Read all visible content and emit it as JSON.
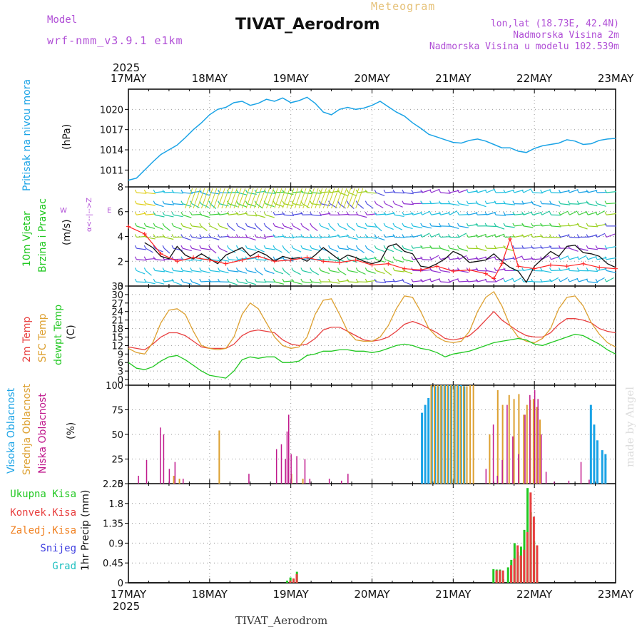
{
  "header": {
    "model_label": "Model",
    "model_name": "wrf-nmm_v3.9.1 e1km",
    "title": "TIVAT_Aerodrom",
    "subtitle": "Meteogram",
    "lonlat": "lon,lat (18.73E, 42.4N)",
    "elevation": "Nadmorska Visina 2m",
    "model_elevation": "Nadmorska Visina u modelu 102.539m"
  },
  "footer": {
    "station": "TIVAT_Aerodrom",
    "made_by": "made by Angel"
  },
  "time_axis": {
    "year": "2025",
    "labels": [
      "17MAY",
      "18MAY",
      "19MAY",
      "20MAY",
      "21MAY",
      "22MAY",
      "23MAY"
    ]
  },
  "colors": {
    "pressure": "#1aa3e6",
    "wind_speed": "#111111",
    "gust": "#ff2020",
    "t2m": "#e84040",
    "sfc": "#dda030",
    "dewpt": "#22c822",
    "high_cloud": "#1aa3e6",
    "mid_cloud": "#dda030",
    "low_cloud": "#c0188c",
    "total_precip": "#22c822",
    "conv_precip": "#e84040",
    "frozen": "#f08020",
    "snow": "#4040e0",
    "hail": "#20c0c0"
  },
  "panels": {
    "pressure": {
      "label": "Pritisak na nivou mora",
      "unit": "(hPa)"
    },
    "wind": {
      "label1": "10m Vjetar",
      "label2": "Brzina i Pravac",
      "unit": "(m/s)",
      "compass_ns": "α<--|-->Z",
      "compass_w": "W",
      "compass_e": "E"
    },
    "temp": {
      "label1": "2m Temp",
      "label2": "SFC Temp",
      "label3": "dewpt Temp",
      "unit": "(C)"
    },
    "cloud": {
      "label1": "Visoka Oblacnost",
      "label2": "Srednja Oblacnost",
      "label3": "Niska Oblacnost",
      "unit": "(%)"
    },
    "precip": {
      "label1": "Ukupna Kisa",
      "label2": "Konvek.Kisa",
      "label3": "Zaledj.Kisa",
      "label4": "Snijeg",
      "label5": "Grad",
      "unit": "1hr Precip (mm)"
    }
  },
  "chart_data": [
    {
      "type": "line",
      "panel": "pressure",
      "x_unit": "days since 17MAY 00UTC",
      "ylim": [
        1008.5,
        1023
      ],
      "yticks": [
        1011,
        1014,
        1017,
        1020
      ],
      "grid": true,
      "x": [
        0.0,
        0.1,
        0.2,
        0.3,
        0.4,
        0.5,
        0.6,
        0.7,
        0.8,
        0.9,
        1.0,
        1.1,
        1.2,
        1.3,
        1.4,
        1.5,
        1.6,
        1.7,
        1.8,
        1.9,
        2.0,
        2.1,
        2.2,
        2.3,
        2.4,
        2.5,
        2.6,
        2.7,
        2.8,
        2.9,
        3.0,
        3.1,
        3.2,
        3.3,
        3.4,
        3.5,
        3.6,
        3.7,
        3.8,
        3.9,
        4.0,
        4.1,
        4.2,
        4.3,
        4.4,
        4.5,
        4.6,
        4.7,
        4.8,
        4.9,
        5.0,
        5.1,
        5.2,
        5.3,
        5.4,
        5.5,
        5.6,
        5.7,
        5.8,
        5.9,
        6.0
      ],
      "values": [
        1009.5,
        1009.8,
        1011.0,
        1012.2,
        1013.3,
        1014.0,
        1014.7,
        1015.8,
        1017.0,
        1018.0,
        1019.2,
        1020.0,
        1020.3,
        1021.0,
        1021.2,
        1020.6,
        1020.9,
        1021.5,
        1021.2,
        1021.7,
        1021.0,
        1021.3,
        1021.8,
        1020.9,
        1019.6,
        1019.2,
        1020.0,
        1020.3,
        1020.0,
        1020.2,
        1020.6,
        1021.2,
        1020.4,
        1019.6,
        1019.0,
        1018.0,
        1017.2,
        1016.3,
        1015.9,
        1015.5,
        1015.1,
        1015.0,
        1015.4,
        1015.6,
        1015.3,
        1014.8,
        1014.3,
        1014.3,
        1013.8,
        1013.6,
        1014.2,
        1014.6,
        1014.8,
        1015.0,
        1015.5,
        1015.3,
        1014.8,
        1014.9,
        1015.4,
        1015.6,
        1015.7
      ],
      "series": [
        {
          "name": "Pritisak na nivou mora"
        }
      ]
    },
    {
      "type": "line",
      "panel": "wind",
      "x_unit": "days since 17MAY 00UTC",
      "ylim": [
        0,
        8
      ],
      "yticks": [
        0,
        2,
        4,
        6,
        8
      ],
      "grid": true,
      "series": [
        {
          "name": "Brzina (wind speed)",
          "x": [
            0.2,
            0.3,
            0.4,
            0.5,
            0.6,
            0.7,
            0.8,
            0.9,
            1.0,
            1.1,
            1.2,
            1.3,
            1.4,
            1.5,
            1.6,
            1.7,
            1.8,
            1.9,
            2.0,
            2.1,
            2.2,
            2.3,
            2.4,
            2.5,
            2.6,
            2.7,
            2.8,
            2.9,
            3.0,
            3.1,
            3.2,
            3.3,
            3.4,
            3.5,
            3.6,
            3.7,
            3.8,
            3.9,
            4.0,
            4.1,
            4.2,
            4.3,
            4.4,
            4.5,
            4.6,
            4.7,
            4.8,
            4.9,
            5.0,
            5.1,
            5.2,
            5.3,
            5.4,
            5.5,
            5.6,
            5.7,
            5.8,
            5.9,
            6.0
          ],
          "values": [
            3.5,
            3.1,
            2.4,
            2.2,
            3.2,
            2.5,
            2.2,
            2.6,
            2.2,
            1.8,
            2.5,
            2.8,
            3.1,
            2.4,
            2.8,
            2.5,
            2.0,
            2.4,
            2.2,
            2.3,
            2.0,
            2.5,
            3.1,
            2.6,
            2.1,
            2.5,
            2.3,
            2.0,
            1.8,
            2.0,
            3.2,
            3.4,
            2.8,
            2.6,
            1.6,
            1.5,
            1.8,
            2.2,
            2.8,
            2.5,
            1.9,
            2.0,
            2.1,
            2.6,
            2.0,
            1.5,
            1.2,
            0.3,
            1.6,
            2.2,
            2.8,
            2.4,
            3.2,
            3.3,
            2.7,
            2.6,
            2.4,
            1.8,
            1.5
          ]
        },
        {
          "name": "Udar (gust)",
          "x": [
            0.0,
            0.2,
            0.4,
            0.6,
            0.8,
            1.0,
            1.2,
            1.4,
            1.6,
            1.8,
            2.0,
            2.2,
            2.4,
            2.6,
            2.8,
            3.0,
            3.2,
            3.4,
            3.6,
            3.8,
            4.0,
            4.2,
            4.4,
            4.5,
            4.6,
            4.7,
            4.8,
            5.0,
            5.2,
            5.4,
            5.6,
            5.8,
            6.0
          ],
          "values": [
            4.8,
            4.2,
            2.6,
            2.0,
            2.3,
            2.1,
            1.8,
            2.1,
            2.4,
            2.0,
            2.1,
            2.3,
            2.0,
            1.9,
            2.1,
            1.7,
            1.8,
            1.4,
            1.3,
            1.6,
            1.2,
            1.3,
            1.0,
            0.6,
            1.8,
            3.8,
            1.6,
            1.4,
            1.7,
            1.6,
            1.8,
            1.5,
            1.4
          ]
        }
      ]
    },
    {
      "type": "line",
      "panel": "temp",
      "x_unit": "days since 17MAY 00UTC",
      "ylim": [
        -2,
        33
      ],
      "yticks": [
        0,
        3,
        6,
        9,
        12,
        15,
        18,
        21,
        24,
        27,
        30,
        33
      ],
      "grid": true,
      "x": [
        0.0,
        0.1,
        0.2,
        0.3,
        0.4,
        0.5,
        0.6,
        0.7,
        0.8,
        0.9,
        1.0,
        1.1,
        1.2,
        1.3,
        1.4,
        1.5,
        1.6,
        1.7,
        1.8,
        1.9,
        2.0,
        2.1,
        2.2,
        2.3,
        2.4,
        2.5,
        2.6,
        2.7,
        2.8,
        2.9,
        3.0,
        3.1,
        3.2,
        3.3,
        3.4,
        3.5,
        3.6,
        3.7,
        3.8,
        3.9,
        4.0,
        4.1,
        4.2,
        4.3,
        4.4,
        4.5,
        4.6,
        4.7,
        4.8,
        4.9,
        5.0,
        5.1,
        5.2,
        5.3,
        5.4,
        5.5,
        5.6,
        5.7,
        5.8,
        5.9,
        6.0
      ],
      "series": [
        {
          "name": "2m Temp",
          "values": [
            11.5,
            11.0,
            10.5,
            12.5,
            15.0,
            16.5,
            16.5,
            15.5,
            13.5,
            11.5,
            11.0,
            11.0,
            11.0,
            12.5,
            15.5,
            17.0,
            17.5,
            17.0,
            16.5,
            14.0,
            12.5,
            12.0,
            12.5,
            14.5,
            17.5,
            18.5,
            18.5,
            17.0,
            15.5,
            14.0,
            13.5,
            14.0,
            15.0,
            17.0,
            19.5,
            20.5,
            19.5,
            18.0,
            16.5,
            14.5,
            14.0,
            14.5,
            15.5,
            18.0,
            21.0,
            24.0,
            21.0,
            19.0,
            17.0,
            15.5,
            15.0,
            15.0,
            16.5,
            19.5,
            21.5,
            21.5,
            21.0,
            20.0,
            18.0,
            17.0,
            16.5
          ]
        },
        {
          "name": "SFC Temp",
          "values": [
            11.0,
            9.5,
            9.0,
            13.0,
            20.0,
            24.5,
            25.0,
            23.0,
            17.0,
            12.0,
            11.0,
            10.5,
            11.0,
            15.0,
            23.0,
            27.0,
            25.0,
            20.0,
            15.0,
            12.0,
            11.0,
            11.5,
            15.0,
            23.0,
            28.0,
            28.5,
            23.0,
            17.0,
            14.0,
            13.5,
            13.5,
            15.0,
            19.0,
            25.0,
            29.5,
            29.0,
            24.0,
            18.0,
            15.0,
            13.5,
            13.0,
            13.5,
            17.0,
            24.0,
            29.0,
            31.0,
            26.0,
            19.0,
            15.0,
            13.5,
            13.0,
            14.5,
            18.0,
            25.0,
            29.0,
            29.5,
            26.0,
            20.0,
            16.0,
            13.0,
            11.5
          ]
        },
        {
          "name": "dewpt Temp",
          "values": [
            6.0,
            4.0,
            3.5,
            4.5,
            6.5,
            8.0,
            8.5,
            7.0,
            5.0,
            3.0,
            1.5,
            1.0,
            0.5,
            3.0,
            7.0,
            8.0,
            7.5,
            8.0,
            8.0,
            6.0,
            6.0,
            6.5,
            8.5,
            9.0,
            10.0,
            10.0,
            10.5,
            10.5,
            10.0,
            10.0,
            9.5,
            10.0,
            11.0,
            12.0,
            12.5,
            12.0,
            11.0,
            10.5,
            9.5,
            8.0,
            9.0,
            9.5,
            10.0,
            11.0,
            12.0,
            13.0,
            13.5,
            14.0,
            14.5,
            14.0,
            12.5,
            12.0,
            13.0,
            14.0,
            15.0,
            16.0,
            15.5,
            14.0,
            12.5,
            10.5,
            9.0
          ]
        }
      ]
    },
    {
      "type": "bar",
      "panel": "cloud",
      "x_unit": "days since 17MAY 00UTC",
      "ylim": [
        0,
        100
      ],
      "yticks": [
        0,
        25,
        50,
        75,
        100
      ],
      "grid": true,
      "series": [
        {
          "name": "Visoka Oblacnost",
          "x": [
            3.62,
            3.66,
            3.7,
            3.74,
            3.78,
            3.82,
            3.86,
            3.9,
            3.94,
            3.98,
            4.02,
            4.06,
            4.1,
            4.14,
            5.7,
            5.74,
            5.78,
            5.84,
            5.88
          ],
          "values": [
            72,
            80,
            87,
            99,
            99,
            99,
            100,
            100,
            100,
            100,
            100,
            100,
            100,
            99,
            80,
            60,
            44,
            34,
            30
          ]
        },
        {
          "name": "Srednja Oblacnost",
          "x": [
            0.55,
            0.62,
            1.11,
            2.0,
            2.14,
            3.72,
            3.76,
            3.8,
            3.84,
            3.88,
            3.92,
            3.96,
            4.0,
            4.04,
            4.08,
            4.12,
            4.16,
            4.2,
            4.24,
            4.44,
            4.54,
            4.6,
            4.68,
            4.74,
            4.8,
            4.86,
            4.9,
            4.94,
            4.98,
            5.02,
            5.06
          ],
          "values": [
            8,
            5,
            54,
            10,
            5,
            100,
            100,
            100,
            100,
            100,
            100,
            100,
            100,
            100,
            99,
            99,
            99,
            100,
            100,
            50,
            95,
            80,
            90,
            86,
            91,
            70,
            80,
            85,
            86,
            78,
            65
          ]
        },
        {
          "name": "Niska Oblacnost",
          "x": [
            0.1,
            0.2,
            0.37,
            0.41,
            0.48,
            0.55,
            0.65,
            1.46,
            1.8,
            1.86,
            1.91,
            1.93,
            1.95,
            1.98,
            2.05,
            2.15,
            2.21,
            2.45,
            2.6,
            2.68,
            4.38,
            4.47,
            4.52,
            4.58,
            4.64,
            4.71,
            4.78,
            4.86,
            4.92,
            4.98,
            5.02,
            5.06,
            5.12,
            5.22,
            5.4,
            5.55,
            5.65
          ],
          "values": [
            8,
            24,
            57,
            50,
            15,
            22,
            5,
            10,
            35,
            40,
            25,
            53,
            70,
            30,
            28,
            25,
            5,
            5,
            3,
            10,
            15,
            60,
            8,
            24,
            80,
            48,
            30,
            70,
            90,
            95,
            86,
            50,
            12,
            2,
            3,
            22,
            4
          ]
        }
      ]
    },
    {
      "type": "bar",
      "panel": "precip",
      "x_unit": "days since 17MAY 00UTC",
      "ylim": [
        0,
        2.25
      ],
      "yticks": [
        0,
        0.45,
        0.9,
        1.35,
        1.8,
        2.25
      ],
      "grid": true,
      "series": [
        {
          "name": "Ukupna Kisa",
          "x": [
            1.96,
            2.0,
            2.04,
            2.08,
            4.5,
            4.54,
            4.58,
            4.62,
            4.68,
            4.72,
            4.76,
            4.8,
            4.84,
            4.88,
            4.92,
            4.96,
            5.0,
            5.04
          ],
          "values": [
            0.05,
            0.12,
            0.08,
            0.25,
            0.31,
            0.3,
            0.3,
            0.08,
            0.35,
            0.52,
            0.9,
            0.7,
            0.82,
            1.2,
            2.15,
            1.6,
            0.95,
            0.05
          ]
        },
        {
          "name": "Konvek.Kisa",
          "x": [
            1.98,
            2.02,
            2.06,
            4.52,
            4.56,
            4.6,
            4.7,
            4.74,
            4.78,
            4.82,
            4.86,
            4.9,
            4.94,
            4.98,
            5.02
          ],
          "values": [
            0.05,
            0.1,
            0.2,
            0.28,
            0.28,
            0.28,
            0.4,
            0.55,
            0.85,
            0.62,
            0.75,
            1.15,
            2.05,
            1.5,
            0.85
          ]
        },
        {
          "name": "Zaledj.Kisa",
          "x": [],
          "values": []
        },
        {
          "name": "Snijeg",
          "x": [],
          "values": []
        },
        {
          "name": "Grad",
          "x": [],
          "values": []
        }
      ]
    }
  ]
}
